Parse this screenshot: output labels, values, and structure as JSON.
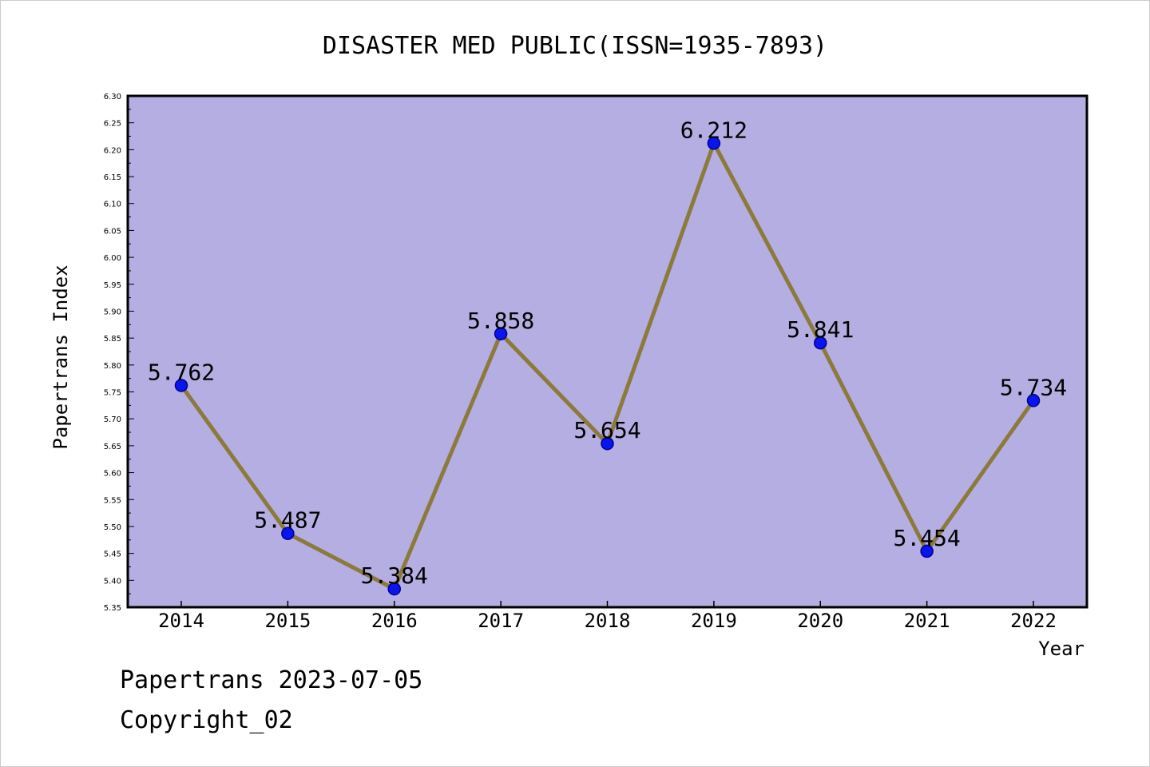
{
  "footer": {
    "line1": "Papertrans 2023-07-05",
    "line2": "Copyright_02"
  },
  "colors": {
    "plot_bg": "#b4aee2",
    "line": "#8c7a3a",
    "marker": "#0a14f0",
    "marker_edge": "#00008c",
    "frame": "#000000"
  },
  "chart_data": {
    "type": "line",
    "title": "DISASTER MED PUBLIC(ISSN=1935-7893)",
    "xlabel": "Year",
    "ylabel": "Papertrans Index",
    "categories": [
      "2014",
      "2015",
      "2016",
      "2017",
      "2018",
      "2019",
      "2020",
      "2021",
      "2022"
    ],
    "values": [
      5.762,
      5.487,
      5.384,
      5.858,
      5.654,
      6.212,
      5.841,
      5.454,
      5.734
    ],
    "data_labels": [
      "5.762",
      "5.487",
      "5.384",
      "5.858",
      "5.654",
      "6.212",
      "5.841",
      "5.454",
      "5.734"
    ],
    "ylim": [
      5.35,
      6.3
    ],
    "yticks": [
      "5.35",
      "5.40",
      "5.45",
      "5.50",
      "5.55",
      "5.60",
      "5.65",
      "5.70",
      "5.75",
      "5.80",
      "5.85",
      "5.90",
      "5.95",
      "6.00",
      "6.05",
      "6.10",
      "6.15",
      "6.20",
      "6.25",
      "6.30"
    ],
    "grid": false,
    "legend": "none"
  }
}
